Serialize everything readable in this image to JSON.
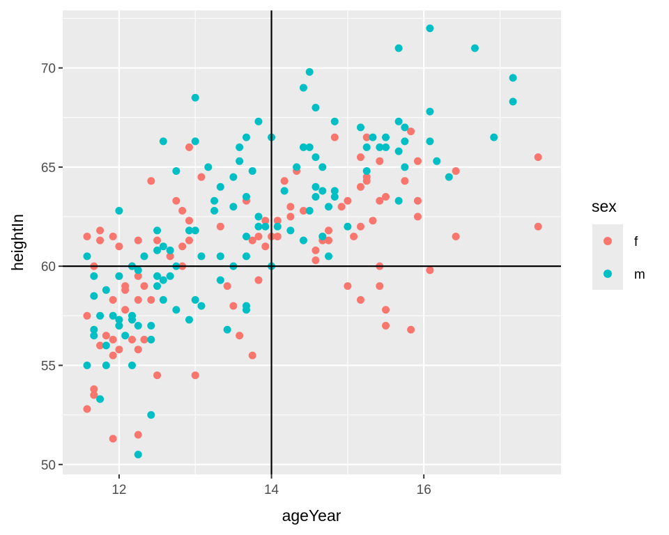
{
  "chart_data": {
    "type": "scatter",
    "title": "",
    "xlabel": "ageYear",
    "ylabel": "heightIn",
    "xlim": [
      11.26,
      17.8
    ],
    "ylim": [
      49.5,
      72.9
    ],
    "x_ticks": [
      12,
      14,
      16
    ],
    "y_ticks": [
      50,
      55,
      60,
      65,
      70
    ],
    "x_tick_labels": [
      "12",
      "14",
      "16"
    ],
    "y_tick_labels": [
      "50",
      "55",
      "60",
      "65",
      "70"
    ],
    "grid": true,
    "background": "#ebebeb",
    "reference_lines": {
      "vline_x": 14,
      "hline_y": 60
    },
    "legend": {
      "title": "sex",
      "placement": "right",
      "entries": [
        {
          "label": "f",
          "color": "#f8766d"
        },
        {
          "label": "m",
          "color": "#00bfc4"
        }
      ]
    },
    "series": [
      {
        "name": "f",
        "color": "#f8766d",
        "points": [
          [
            11.58,
            61.5
          ],
          [
            11.58,
            57.5
          ],
          [
            11.58,
            52.8
          ],
          [
            11.67,
            60.0
          ],
          [
            11.67,
            53.8
          ],
          [
            11.67,
            53.5
          ],
          [
            11.75,
            61.8
          ],
          [
            11.75,
            61.3
          ],
          [
            11.75,
            56.0
          ],
          [
            11.83,
            56.5
          ],
          [
            11.92,
            61.5
          ],
          [
            11.92,
            58.3
          ],
          [
            11.92,
            56.3
          ],
          [
            11.92,
            55.5
          ],
          [
            11.92,
            51.3
          ],
          [
            12.0,
            61.0
          ],
          [
            12.0,
            59.5
          ],
          [
            12.0,
            57.0
          ],
          [
            12.0,
            55.8
          ],
          [
            12.08,
            59.0
          ],
          [
            12.08,
            58.8
          ],
          [
            12.08,
            57.8
          ],
          [
            12.17,
            60.0
          ],
          [
            12.17,
            56.3
          ],
          [
            12.25,
            61.3
          ],
          [
            12.25,
            59.5
          ],
          [
            12.25,
            58.3
          ],
          [
            12.25,
            55.8
          ],
          [
            12.25,
            51.5
          ],
          [
            12.33,
            59.0
          ],
          [
            12.33,
            56.3
          ],
          [
            12.42,
            64.3
          ],
          [
            12.42,
            58.3
          ],
          [
            12.5,
            61.3
          ],
          [
            12.5,
            54.5
          ],
          [
            12.67,
            60.5
          ],
          [
            12.75,
            63.3
          ],
          [
            12.83,
            62.8
          ],
          [
            12.83,
            61.0
          ],
          [
            12.83,
            60.0
          ],
          [
            12.92,
            66.0
          ],
          [
            12.92,
            62.3
          ],
          [
            12.92,
            61.3
          ],
          [
            13.0,
            54.5
          ],
          [
            13.08,
            64.5
          ],
          [
            13.33,
            62.0
          ],
          [
            13.42,
            59.0
          ],
          [
            13.5,
            58.0
          ],
          [
            13.58,
            56.5
          ],
          [
            13.67,
            63.3
          ],
          [
            13.75,
            61.3
          ],
          [
            13.75,
            55.5
          ],
          [
            13.83,
            59.3
          ],
          [
            13.83,
            61.5
          ],
          [
            13.92,
            62.3
          ],
          [
            13.92,
            61.0
          ],
          [
            14.0,
            61.5
          ],
          [
            14.08,
            62.3
          ],
          [
            14.08,
            61.5
          ],
          [
            14.17,
            64.3
          ],
          [
            14.25,
            63.0
          ],
          [
            14.25,
            62.5
          ],
          [
            14.33,
            64.8
          ],
          [
            14.42,
            62.8
          ],
          [
            14.58,
            60.8
          ],
          [
            14.58,
            60.3
          ],
          [
            14.67,
            61.5
          ],
          [
            14.67,
            61.3
          ],
          [
            14.75,
            61.3
          ],
          [
            14.75,
            61.8
          ],
          [
            14.83,
            66.5
          ],
          [
            14.92,
            63.0
          ],
          [
            15.0,
            63.3
          ],
          [
            15.0,
            59.0
          ],
          [
            15.08,
            61.5
          ],
          [
            15.17,
            65.5
          ],
          [
            15.17,
            64.0
          ],
          [
            15.17,
            62.0
          ],
          [
            15.17,
            58.3
          ],
          [
            15.25,
            66.5
          ],
          [
            15.25,
            64.5
          ],
          [
            15.25,
            64.3
          ],
          [
            15.33,
            62.3
          ],
          [
            15.42,
            65.3
          ],
          [
            15.42,
            63.3
          ],
          [
            15.42,
            60.0
          ],
          [
            15.42,
            59.0
          ],
          [
            15.5,
            63.5
          ],
          [
            15.5,
            57.8
          ],
          [
            15.5,
            57.0
          ],
          [
            15.75,
            64.3
          ],
          [
            15.83,
            66.8
          ],
          [
            15.83,
            56.8
          ],
          [
            15.92,
            65.3
          ],
          [
            15.92,
            63.3
          ],
          [
            15.92,
            62.5
          ],
          [
            16.08,
            59.8
          ],
          [
            16.42,
            64.8
          ],
          [
            16.42,
            61.5
          ],
          [
            17.5,
            65.5
          ],
          [
            17.5,
            62.0
          ]
        ]
      },
      {
        "name": "m",
        "color": "#00bfc4",
        "points": [
          [
            11.58,
            60.5
          ],
          [
            11.58,
            55.0
          ],
          [
            11.67,
            59.5
          ],
          [
            11.67,
            58.5
          ],
          [
            11.67,
            56.8
          ],
          [
            11.67,
            56.5
          ],
          [
            11.75,
            57.5
          ],
          [
            11.75,
            53.3
          ],
          [
            11.83,
            58.8
          ],
          [
            11.83,
            56.0
          ],
          [
            11.83,
            55.0
          ],
          [
            11.92,
            57.5
          ],
          [
            12.0,
            62.8
          ],
          [
            12.0,
            59.5
          ],
          [
            12.0,
            57.3
          ],
          [
            12.0,
            57.0
          ],
          [
            12.08,
            56.5
          ],
          [
            12.17,
            60.0
          ],
          [
            12.17,
            57.5
          ],
          [
            12.17,
            57.3
          ],
          [
            12.17,
            55.0
          ],
          [
            12.25,
            59.8
          ],
          [
            12.25,
            57.0
          ],
          [
            12.25,
            50.5
          ],
          [
            12.33,
            60.5
          ],
          [
            12.42,
            57.0
          ],
          [
            12.42,
            56.3
          ],
          [
            12.42,
            52.5
          ],
          [
            12.5,
            61.8
          ],
          [
            12.5,
            60.8
          ],
          [
            12.5,
            59.5
          ],
          [
            12.5,
            59.0
          ],
          [
            12.58,
            66.3
          ],
          [
            12.58,
            61.0
          ],
          [
            12.58,
            59.3
          ],
          [
            12.58,
            58.3
          ],
          [
            12.67,
            60.8
          ],
          [
            12.67,
            59.5
          ],
          [
            12.75,
            64.8
          ],
          [
            12.75,
            60.0
          ],
          [
            12.75,
            57.8
          ],
          [
            12.92,
            61.8
          ],
          [
            12.92,
            57.3
          ],
          [
            13.0,
            68.5
          ],
          [
            13.0,
            66.3
          ],
          [
            13.0,
            61.8
          ],
          [
            13.0,
            58.3
          ],
          [
            13.08,
            60.5
          ],
          [
            13.08,
            58.0
          ],
          [
            13.17,
            65.0
          ],
          [
            13.25,
            63.3
          ],
          [
            13.25,
            62.8
          ],
          [
            13.33,
            64.0
          ],
          [
            13.33,
            60.5
          ],
          [
            13.33,
            59.3
          ],
          [
            13.42,
            56.8
          ],
          [
            13.5,
            64.5
          ],
          [
            13.5,
            63.0
          ],
          [
            13.5,
            60.0
          ],
          [
            13.58,
            66.0
          ],
          [
            13.58,
            65.3
          ],
          [
            13.67,
            66.5
          ],
          [
            13.67,
            63.5
          ],
          [
            13.67,
            61.5
          ],
          [
            13.67,
            60.5
          ],
          [
            13.67,
            58.0
          ],
          [
            13.67,
            57.8
          ],
          [
            13.75,
            64.8
          ],
          [
            13.83,
            67.3
          ],
          [
            13.83,
            62.5
          ],
          [
            13.83,
            62.0
          ],
          [
            13.92,
            62.0
          ],
          [
            14.0,
            66.5
          ],
          [
            14.0,
            60.0
          ],
          [
            14.08,
            62.0
          ],
          [
            14.17,
            63.8
          ],
          [
            14.25,
            61.8
          ],
          [
            14.33,
            65.0
          ],
          [
            14.42,
            69.0
          ],
          [
            14.42,
            66.0
          ],
          [
            14.42,
            61.3
          ],
          [
            14.5,
            69.8
          ],
          [
            14.5,
            66.0
          ],
          [
            14.5,
            62.8
          ],
          [
            14.58,
            68.0
          ],
          [
            14.58,
            65.5
          ],
          [
            14.58,
            64.0
          ],
          [
            14.58,
            63.5
          ],
          [
            14.67,
            65.0
          ],
          [
            14.67,
            63.8
          ],
          [
            14.67,
            61.5
          ],
          [
            14.75,
            63.0
          ],
          [
            14.75,
            60.5
          ],
          [
            14.83,
            67.3
          ],
          [
            14.83,
            63.8
          ],
          [
            14.83,
            63.5
          ],
          [
            15.0,
            62.0
          ],
          [
            15.17,
            67.0
          ],
          [
            15.25,
            66.0
          ],
          [
            15.25,
            64.8
          ],
          [
            15.33,
            66.5
          ],
          [
            15.42,
            66.0
          ],
          [
            15.5,
            66.5
          ],
          [
            15.5,
            66.0
          ],
          [
            15.67,
            67.3
          ],
          [
            15.67,
            65.8
          ],
          [
            15.67,
            63.3
          ],
          [
            15.67,
            71.0
          ],
          [
            15.75,
            67.0
          ],
          [
            15.75,
            66.3
          ],
          [
            15.75,
            65.0
          ],
          [
            16.08,
            72.0
          ],
          [
            16.08,
            67.8
          ],
          [
            16.08,
            66.3
          ],
          [
            16.17,
            65.3
          ],
          [
            16.33,
            64.5
          ],
          [
            16.67,
            71.0
          ],
          [
            16.92,
            66.5
          ],
          [
            17.17,
            69.5
          ],
          [
            17.17,
            68.3
          ]
        ]
      }
    ]
  }
}
